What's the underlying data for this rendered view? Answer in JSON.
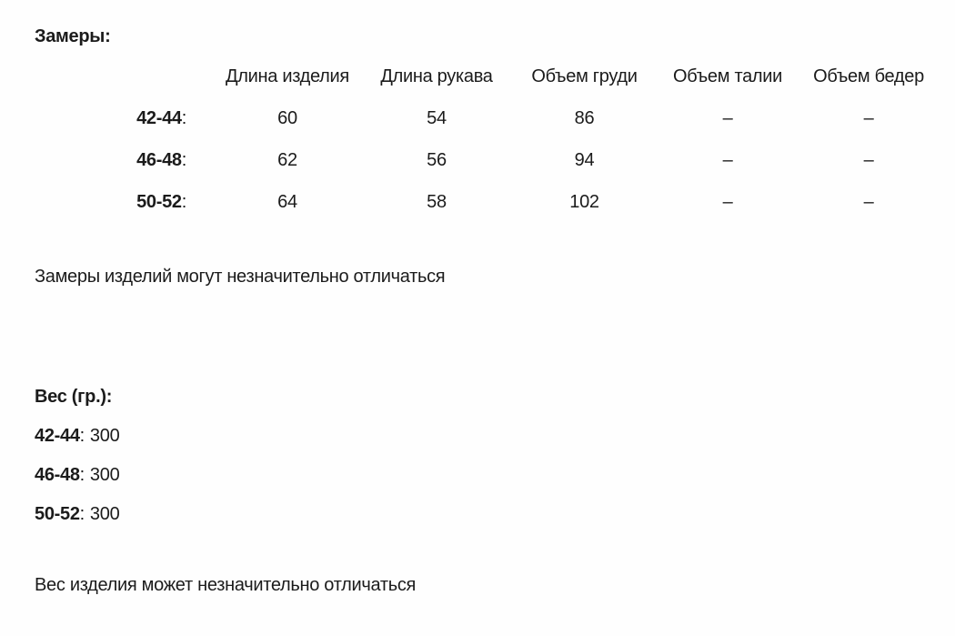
{
  "colors": {
    "background": "#fefefe",
    "text": "#1b1b1b"
  },
  "punct": {
    "colon": ":"
  },
  "measurements": {
    "title": "Замеры:",
    "columns": [
      "Длина изделия",
      "Длина рукава",
      "Объем груди",
      "Объем талии",
      "Объем бедер"
    ],
    "rows": [
      {
        "size": "42-44",
        "values": [
          "60",
          "54",
          "86",
          "–",
          "–"
        ]
      },
      {
        "size": "46-48",
        "values": [
          "62",
          "56",
          "94",
          "–",
          "–"
        ]
      },
      {
        "size": "50-52",
        "values": [
          "64",
          "58",
          "102",
          "–",
          "–"
        ]
      }
    ],
    "note": "Замеры изделий могут незначительно отличаться"
  },
  "weight": {
    "title": "Вес (гр.):",
    "rows": [
      {
        "size": "42-44",
        "value": "300"
      },
      {
        "size": "46-48",
        "value": "300"
      },
      {
        "size": "50-52",
        "value": "300"
      }
    ],
    "note": "Вес изделия может незначительно отличаться"
  }
}
